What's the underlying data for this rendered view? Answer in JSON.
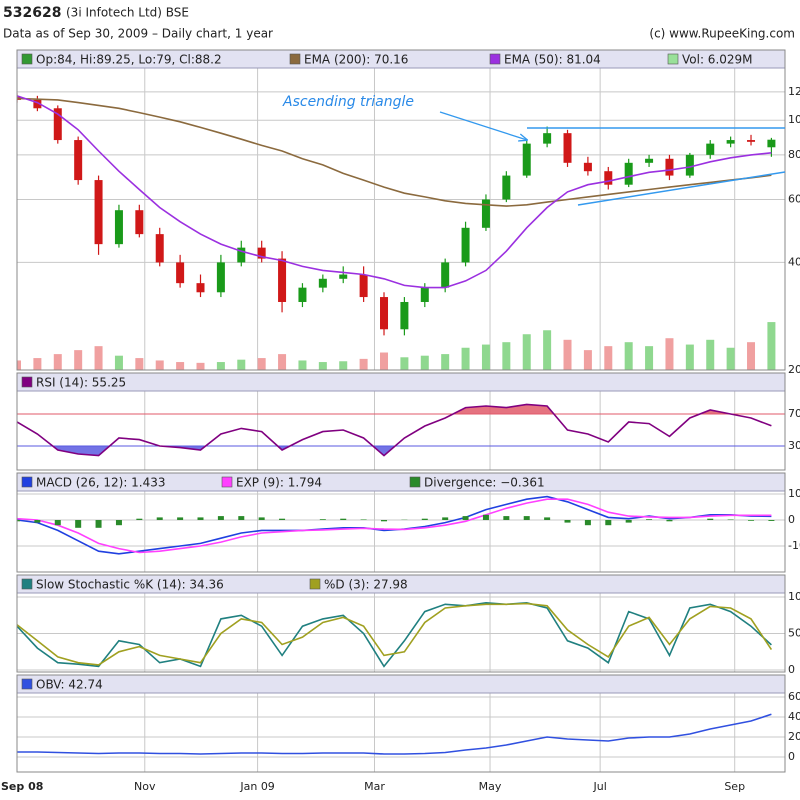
{
  "header": {
    "symbol": "532628",
    "name": "(3i Infotech Ltd) BSE",
    "subtitle": "Data as of Sep 30, 2009 – Daily chart, 1 year",
    "credit": "(c) www.RupeeKing.com",
    "annotation": "Ascending triangle"
  },
  "chart_data": [
    {
      "type": "candlestick",
      "log_scale": true,
      "x": [
        0,
        1.5,
        3,
        4.5,
        6,
        7.5,
        9,
        10.5,
        12,
        13.5,
        15,
        16.5,
        18,
        19.5,
        21,
        22.5,
        24,
        25.5,
        27,
        28.5,
        30,
        31.5,
        33,
        34.5,
        36,
        37.5,
        39,
        40.5,
        42,
        43.5,
        45,
        46.5,
        48,
        49.5,
        51,
        52.5,
        54,
        55.5
      ],
      "xlim": [
        0,
        56.5
      ],
      "xticks": [
        {
          "value": 0,
          "label": "Sep 08"
        },
        {
          "value": 9.4,
          "label": "Nov"
        },
        {
          "value": 17.7,
          "label": "Jan 09"
        },
        {
          "value": 26.3,
          "label": "Mar"
        },
        {
          "value": 34.8,
          "label": "May"
        },
        {
          "value": 42.9,
          "label": "Jul"
        },
        {
          "value": 52.8,
          "label": "Sep"
        }
      ],
      "ylim": [
        20,
        140
      ],
      "yticks": [
        20,
        40,
        60,
        80,
        100,
        120
      ],
      "ohlc": {
        "name": "Op:84, Hi:89.25, Lo:79, Cl:88.2",
        "color": "#339933",
        "up_color": "#1a9a1a",
        "down_color": "#d01818",
        "open": [
          116,
          114,
          108,
          88,
          68,
          45,
          56,
          48,
          40,
          35,
          33,
          40,
          44,
          41,
          31,
          34,
          36,
          37,
          32,
          26,
          31,
          34,
          40,
          50,
          60,
          70,
          86,
          92,
          76,
          72,
          66,
          76,
          78,
          70,
          80,
          86,
          88,
          84
        ],
        "high": [
          119,
          117,
          110,
          90,
          70,
          58,
          58,
          50,
          42,
          37,
          42,
          46,
          46,
          43,
          35,
          37,
          39,
          39,
          33,
          32,
          35,
          41,
          52,
          62,
          72,
          88,
          96,
          94,
          79,
          74,
          78,
          80,
          80,
          81,
          88,
          90,
          91,
          89.25
        ],
        "low": [
          112,
          106,
          86,
          66,
          42,
          44,
          47,
          39,
          34,
          32,
          32,
          39,
          40,
          29,
          30,
          33,
          35,
          31,
          25,
          25,
          30,
          33,
          39,
          49,
          59,
          69,
          84,
          74,
          70,
          64,
          65,
          74,
          68,
          69,
          78,
          84,
          85,
          79
        ],
        "close": [
          114,
          108,
          88,
          68,
          45,
          56,
          48,
          40,
          35,
          33,
          40,
          44,
          41,
          31,
          34,
          36,
          37,
          32,
          26,
          31,
          34,
          40,
          50,
          60,
          70,
          86,
          92,
          76,
          72,
          66,
          76,
          78,
          70,
          80,
          86,
          88,
          87,
          88.2
        ]
      },
      "series": [
        {
          "name": "EMA (200): 70.16",
          "color": "#8b6a3e",
          "values": [
            115,
            114.5,
            114,
            112,
            110,
            108,
            105,
            102,
            99,
            95.5,
            92,
            88.5,
            85,
            82,
            78,
            75,
            71,
            68,
            65,
            62.5,
            61,
            59.5,
            58.5,
            58,
            57.5,
            58,
            59,
            60,
            61,
            62,
            63,
            64,
            65,
            66,
            67,
            68,
            69,
            70.16
          ]
        },
        {
          "name": "EMA (50): 81.04",
          "color": "#9b30e0",
          "values": [
            117,
            112,
            104,
            94,
            82,
            72,
            64,
            57,
            52,
            48,
            45,
            43,
            41.5,
            40.5,
            39,
            38,
            37.5,
            37,
            36,
            34.5,
            34,
            34,
            35.5,
            38,
            43,
            50,
            57,
            63,
            66,
            67.5,
            69.5,
            71.5,
            72.5,
            74,
            76.5,
            78.5,
            80,
            81.04
          ]
        }
      ],
      "volume": {
        "name": "Vol: 6.029M",
        "color": "#99e099",
        "up_color": "#8fd88f",
        "down_color": "#f0a0a0",
        "ylim": [
          0,
          38
        ],
        "values": [
          1.2,
          1.5,
          2.0,
          2.5,
          3.0,
          1.8,
          1.5,
          1.2,
          1.0,
          0.9,
          1.0,
          1.3,
          1.5,
          2.0,
          1.2,
          1.0,
          1.1,
          1.4,
          2.2,
          1.6,
          1.8,
          2.0,
          2.8,
          3.2,
          3.5,
          4.5,
          5.0,
          3.8,
          2.5,
          3.0,
          3.5,
          3.0,
          4.0,
          3.2,
          3.8,
          2.8,
          3.5,
          6.029
        ]
      }
    },
    {
      "type": "line",
      "ylim": [
        0,
        100
      ],
      "yticks": [
        30,
        70
      ],
      "tick_colors": [
        "#5a5ae0",
        "#e05a6a"
      ],
      "level_fill": true,
      "series": [
        {
          "name": "RSI (14): 55.25",
          "color": "#800080",
          "values": [
            60,
            45,
            25,
            20,
            18,
            40,
            38,
            30,
            28,
            25,
            45,
            52,
            48,
            25,
            38,
            48,
            50,
            40,
            18,
            40,
            55,
            65,
            78,
            80,
            78,
            82,
            80,
            50,
            45,
            35,
            60,
            58,
            42,
            65,
            75,
            70,
            65,
            55.25
          ]
        }
      ]
    },
    {
      "type": "line",
      "ylim": [
        -20,
        10
      ],
      "yticks": [
        -10,
        0,
        10
      ],
      "series": [
        {
          "name": "MACD (26, 12): 1.433",
          "color": "#2040e0",
          "values": [
            0,
            -1,
            -4,
            -8,
            -12,
            -13,
            -12,
            -11,
            -10,
            -9,
            -7,
            -5,
            -4,
            -4,
            -4,
            -3.5,
            -3,
            -3,
            -4,
            -3.5,
            -2.5,
            -1,
            1,
            4,
            6,
            8,
            9,
            7,
            4,
            1,
            0.5,
            1.5,
            0.5,
            1,
            2,
            2,
            1.5,
            1.433
          ]
        },
        {
          "name": "EXP (9): 1.794",
          "color": "#ff40ff",
          "values": [
            0.5,
            0,
            -2,
            -5,
            -9,
            -11,
            -12.5,
            -12,
            -11,
            -10,
            -8.5,
            -6.5,
            -5,
            -4.5,
            -4,
            -3.8,
            -3.5,
            -3.2,
            -3.5,
            -3.6,
            -3,
            -2,
            -0.5,
            2,
            4.5,
            6.5,
            8,
            8,
            6,
            3,
            1.5,
            1.2,
            1,
            1,
            1.5,
            1.8,
            1.8,
            1.794
          ]
        },
        {
          "name": "Divergence: −0.361",
          "color": "#2a8a2a",
          "style": "bar",
          "values": [
            -0.5,
            -1,
            -2,
            -3,
            -3,
            -2,
            0.5,
            1,
            1,
            1,
            1.5,
            1.5,
            1,
            0.5,
            0,
            0.3,
            0.5,
            0.2,
            -0.5,
            0.1,
            0.5,
            1,
            1.5,
            2,
            1.5,
            1.5,
            1,
            -1,
            -2,
            -2,
            -1,
            0.3,
            -0.5,
            0,
            0.5,
            0.2,
            -0.3,
            -0.361
          ]
        }
      ]
    },
    {
      "type": "line",
      "ylim": [
        0,
        100
      ],
      "yticks": [
        0,
        50,
        100
      ],
      "series": [
        {
          "name": "Slow Stochastic %K (14): 34.36",
          "color": "#208080",
          "values": [
            60,
            30,
            10,
            8,
            5,
            40,
            35,
            10,
            15,
            5,
            70,
            75,
            60,
            20,
            60,
            70,
            75,
            50,
            5,
            40,
            80,
            90,
            88,
            92,
            90,
            92,
            85,
            40,
            30,
            10,
            80,
            70,
            20,
            85,
            90,
            80,
            60,
            34.36
          ]
        },
        {
          "name": "%D (3): 27.98",
          "color": "#a0a020",
          "values": [
            62,
            40,
            18,
            10,
            7,
            25,
            32,
            20,
            15,
            10,
            50,
            70,
            65,
            35,
            45,
            65,
            72,
            60,
            20,
            25,
            65,
            85,
            88,
            90,
            90,
            91,
            88,
            55,
            35,
            18,
            60,
            72,
            35,
            70,
            87,
            85,
            70,
            27.98
          ]
        }
      ]
    },
    {
      "type": "line",
      "ylim": [
        -15,
        60
      ],
      "yticks": [
        0,
        20,
        40,
        60
      ],
      "series": [
        {
          "name": "OBV: 42.74",
          "color": "#3050e0",
          "values": [
            5,
            5,
            4.5,
            4,
            3.5,
            4,
            4,
            3.5,
            3.5,
            3,
            3.5,
            4,
            4,
            3.5,
            3.5,
            4,
            4,
            4,
            3,
            3,
            3.5,
            4.5,
            7,
            9,
            12,
            16,
            20,
            18,
            17,
            16,
            19,
            20,
            20,
            23,
            28,
            32,
            36,
            42.74
          ]
        }
      ]
    }
  ]
}
